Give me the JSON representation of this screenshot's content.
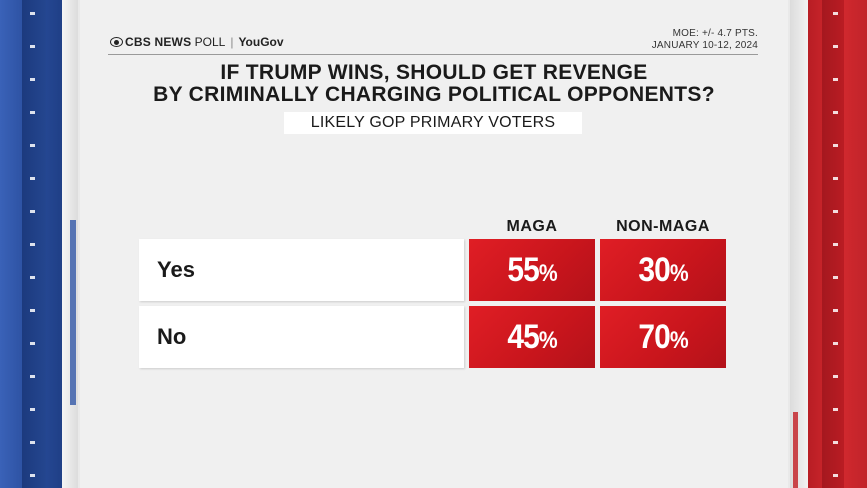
{
  "header": {
    "brand_cbs": "CBS NEWS",
    "brand_poll": "POLL",
    "brand_partner": "YouGov",
    "moe": "MOE: +/- 4.7 PTS.",
    "dates": "JANUARY 10-12, 2024"
  },
  "colors": {
    "cell_red": "#d41a21",
    "left_band_blue": "#2b4f9f",
    "right_band_red": "#c8232a"
  },
  "chart_data": {
    "type": "table",
    "title_line1": "IF TRUMP WINS, SHOULD GET REVENGE",
    "title_line2": "BY CRIMINALLY CHARGING POLITICAL OPPONENTS?",
    "subtitle": "LIKELY GOP PRIMARY VOTERS",
    "columns": [
      "MAGA",
      "NON-MAGA"
    ],
    "rows": [
      {
        "label": "Yes",
        "values": [
          55,
          30
        ]
      },
      {
        "label": "No",
        "values": [
          45,
          70
        ]
      }
    ],
    "unit": "%"
  }
}
